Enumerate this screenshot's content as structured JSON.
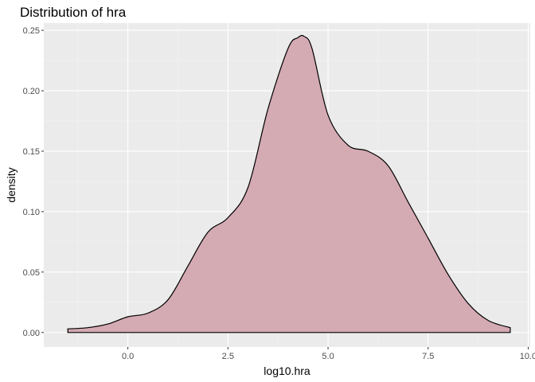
{
  "colors": {
    "panel": "#ebebeb",
    "grid_major": "#ffffff",
    "grid_minor": "#f5f5f5",
    "fill": "#d4aab3",
    "line": "#000000",
    "tick_text": "#4d4d4d"
  },
  "chart_data": {
    "type": "area",
    "title": "Distribution of hra",
    "xlabel": "log10.hra",
    "ylabel": "density",
    "xlim": [
      -2.1,
      10.05
    ],
    "ylim": [
      -0.012,
      0.256
    ],
    "x_ticks": [
      0.0,
      2.5,
      5.0,
      7.5,
      10.0
    ],
    "x_tick_labels": [
      "0.0",
      "2.5",
      "5.0",
      "7.5",
      "10.0"
    ],
    "y_ticks": [
      0.0,
      0.05,
      0.1,
      0.15,
      0.2,
      0.25
    ],
    "y_tick_labels": [
      "0.00",
      "0.05",
      "0.10",
      "0.15",
      "0.20",
      "0.25"
    ],
    "grid": true,
    "series": [
      {
        "x": [
          -1.5,
          -1.0,
          -0.5,
          0.0,
          0.5,
          1.0,
          1.5,
          2.0,
          2.5,
          3.0,
          3.5,
          4.0,
          4.25,
          4.4,
          4.6,
          5.0,
          5.5,
          6.0,
          6.5,
          7.0,
          7.5,
          8.0,
          8.5,
          9.0,
          9.55
        ],
        "y": [
          0.003,
          0.004,
          0.007,
          0.013,
          0.016,
          0.027,
          0.055,
          0.083,
          0.095,
          0.12,
          0.185,
          0.235,
          0.244,
          0.245,
          0.235,
          0.18,
          0.155,
          0.15,
          0.138,
          0.108,
          0.078,
          0.048,
          0.024,
          0.01,
          0.004
        ]
      }
    ]
  }
}
